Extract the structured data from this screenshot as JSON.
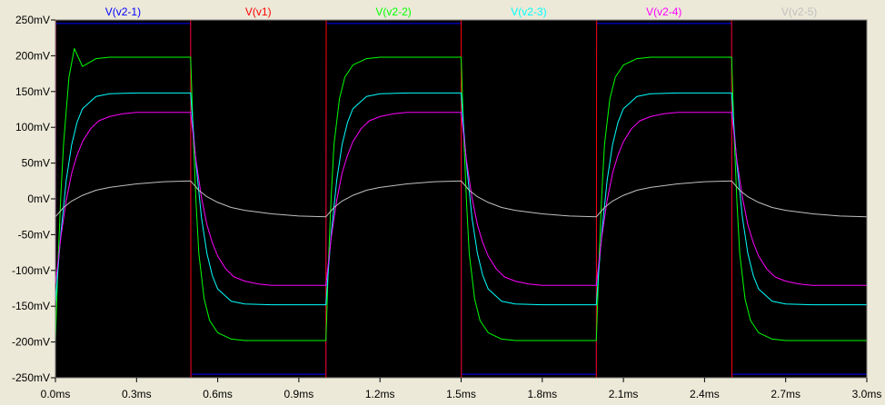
{
  "chart_data": {
    "type": "line",
    "title": "",
    "xlabel": "",
    "ylabel": "",
    "xlim": [
      0,
      3.0
    ],
    "ylim": [
      -250,
      250
    ],
    "x_unit": "ms",
    "y_unit": "mV",
    "grid": false,
    "legend_position": "top",
    "background": "#000000",
    "x_ticks": [
      "0.0ms",
      "0.3ms",
      "0.6ms",
      "0.9ms",
      "1.2ms",
      "1.5ms",
      "1.8ms",
      "2.1ms",
      "2.4ms",
      "2.7ms",
      "3.0ms"
    ],
    "y_ticks": [
      "250mV",
      "200mV",
      "150mV",
      "100mV",
      "50mV",
      "0mV",
      "-50mV",
      "-100mV",
      "-150mV",
      "-200mV",
      "-250mV"
    ],
    "series": [
      {
        "name": "V(v2-1)",
        "color": "#0000ff",
        "x": [
          0,
          0.001,
          0.499,
          0.5,
          0.501,
          0.999,
          1.0,
          1.001,
          1.499,
          1.5,
          1.501,
          1.999,
          2.0,
          2.001,
          2.499,
          2.5,
          2.501,
          2.999,
          3.0
        ],
        "y": [
          -245,
          245,
          245,
          245,
          -245,
          -245,
          -245,
          245,
          245,
          245,
          -245,
          -245,
          -245,
          245,
          245,
          245,
          -245,
          -245,
          -245
        ]
      },
      {
        "name": "V(v1)",
        "color": "#ff0000",
        "x": [
          0,
          0.001,
          0.499,
          0.5,
          0.501,
          0.999,
          1.0,
          1.001,
          1.499,
          1.5,
          1.501,
          1.999,
          2.0,
          2.001,
          2.499,
          2.5,
          2.501,
          2.999,
          3.0
        ],
        "y": [
          -250,
          250,
          250,
          250,
          -250,
          -250,
          -250,
          250,
          250,
          250,
          -250,
          -250,
          -250,
          250,
          250,
          250,
          -250,
          -250,
          -250
        ]
      },
      {
        "name": "V(v2-2)",
        "color": "#00ff00",
        "x": [
          0,
          0.01,
          0.02,
          0.03,
          0.05,
          0.07,
          0.1,
          0.15,
          0.2,
          0.3,
          0.4,
          0.5,
          0.51,
          0.52,
          0.53,
          0.55,
          0.57,
          0.6,
          0.65,
          0.7,
          0.8,
          0.9,
          1.0,
          1.01,
          1.02,
          1.03,
          1.05,
          1.07,
          1.1,
          1.15,
          1.2,
          1.3,
          1.4,
          1.5,
          1.51,
          1.52,
          1.53,
          1.55,
          1.57,
          1.6,
          1.65,
          1.7,
          1.8,
          1.9,
          2.0,
          2.01,
          2.02,
          2.03,
          2.05,
          2.07,
          2.1,
          2.15,
          2.2,
          2.3,
          2.4,
          2.5,
          2.51,
          2.52,
          2.53,
          2.55,
          2.57,
          2.6,
          2.65,
          2.7,
          2.8,
          2.9,
          3.0
        ],
        "y": [
          -198,
          -84,
          6,
          76,
          170,
          210,
          185,
          196,
          198,
          198,
          198,
          198,
          84,
          -6,
          -76,
          -140,
          -170,
          -187,
          -196,
          -198,
          -198,
          -198,
          -198,
          -84,
          6,
          76,
          140,
          170,
          187,
          196,
          198,
          198,
          198,
          198,
          84,
          -6,
          -76,
          -140,
          -170,
          -187,
          -196,
          -198,
          -198,
          -198,
          -198,
          -84,
          6,
          76,
          140,
          170,
          187,
          196,
          198,
          198,
          198,
          198,
          84,
          -6,
          -76,
          -140,
          -170,
          -187,
          -196,
          -198,
          -198,
          -198,
          -198
        ]
      },
      {
        "name": "V(v2-3)",
        "color": "#00ffff",
        "x": [
          0,
          0.01,
          0.02,
          0.04,
          0.06,
          0.08,
          0.1,
          0.15,
          0.2,
          0.3,
          0.4,
          0.5,
          0.51,
          0.52,
          0.54,
          0.56,
          0.58,
          0.6,
          0.65,
          0.7,
          0.8,
          0.9,
          1.0,
          1.01,
          1.02,
          1.04,
          1.06,
          1.08,
          1.1,
          1.15,
          1.2,
          1.3,
          1.4,
          1.5,
          1.51,
          1.52,
          1.54,
          1.56,
          1.58,
          1.6,
          1.65,
          1.7,
          1.8,
          1.9,
          2.0,
          2.01,
          2.02,
          2.04,
          2.06,
          2.08,
          2.1,
          2.15,
          2.2,
          2.3,
          2.4,
          2.5,
          2.51,
          2.52,
          2.54,
          2.56,
          2.58,
          2.6,
          2.65,
          2.7,
          2.8,
          2.9,
          3.0
        ],
        "y": [
          -148,
          -95,
          -48,
          26,
          76,
          107,
          126,
          143,
          147,
          148,
          148,
          148,
          95,
          48,
          -26,
          -76,
          -107,
          -126,
          -143,
          -147,
          -148,
          -148,
          -148,
          -95,
          -48,
          26,
          76,
          107,
          126,
          143,
          147,
          148,
          148,
          148,
          95,
          48,
          -26,
          -76,
          -107,
          -126,
          -143,
          -147,
          -148,
          -148,
          -148,
          -95,
          -48,
          26,
          76,
          107,
          126,
          143,
          147,
          148,
          148,
          148,
          95,
          48,
          -26,
          -76,
          -107,
          -126,
          -143,
          -147,
          -148,
          -148,
          -148
        ]
      },
      {
        "name": "V(v2-4)",
        "color": "#ff00ff",
        "x": [
          0,
          0.02,
          0.04,
          0.06,
          0.08,
          0.1,
          0.13,
          0.16,
          0.2,
          0.25,
          0.3,
          0.4,
          0.5,
          0.52,
          0.54,
          0.56,
          0.58,
          0.6,
          0.63,
          0.66,
          0.7,
          0.75,
          0.8,
          0.9,
          1.0,
          1.02,
          1.04,
          1.06,
          1.08,
          1.1,
          1.13,
          1.16,
          1.2,
          1.25,
          1.3,
          1.4,
          1.5,
          1.52,
          1.54,
          1.56,
          1.58,
          1.6,
          1.63,
          1.66,
          1.7,
          1.75,
          1.8,
          1.9,
          2.0,
          2.02,
          2.04,
          2.06,
          2.08,
          2.1,
          2.13,
          2.16,
          2.2,
          2.25,
          2.3,
          2.4,
          2.5,
          2.52,
          2.54,
          2.56,
          2.58,
          2.6,
          2.63,
          2.66,
          2.7,
          2.75,
          2.8,
          2.9,
          3.0
        ],
        "y": [
          -121,
          -53,
          -2,
          36,
          61,
          80,
          98,
          109,
          115,
          119,
          121,
          121,
          121,
          53,
          2,
          -36,
          -61,
          -80,
          -98,
          -109,
          -115,
          -119,
          -121,
          -121,
          -121,
          -53,
          -2,
          36,
          61,
          80,
          98,
          109,
          115,
          119,
          121,
          121,
          121,
          53,
          2,
          -36,
          -61,
          -80,
          -98,
          -109,
          -115,
          -119,
          -121,
          -121,
          -121,
          -53,
          -2,
          36,
          61,
          80,
          98,
          109,
          115,
          119,
          121,
          121,
          121,
          53,
          2,
          -36,
          -61,
          -80,
          -98,
          -109,
          -115,
          -119,
          -121,
          -121,
          -121
        ]
      },
      {
        "name": "V(v2-5)",
        "color": "#c0c0c0",
        "x": [
          0,
          0.03,
          0.06,
          0.1,
          0.15,
          0.2,
          0.3,
          0.4,
          0.5,
          0.53,
          0.56,
          0.6,
          0.65,
          0.7,
          0.8,
          0.9,
          1.0,
          1.03,
          1.06,
          1.1,
          1.15,
          1.2,
          1.3,
          1.4,
          1.5,
          1.53,
          1.56,
          1.6,
          1.65,
          1.7,
          1.8,
          1.9,
          2.0,
          2.03,
          2.06,
          2.1,
          2.15,
          2.2,
          2.3,
          2.4,
          2.5,
          2.53,
          2.56,
          2.6,
          2.65,
          2.7,
          2.8,
          2.9,
          3.0
        ],
        "y": [
          -25,
          -12,
          -3,
          5,
          12,
          16,
          21,
          24,
          25,
          12,
          3,
          -5,
          -12,
          -16,
          -21,
          -24,
          -25,
          -12,
          -3,
          5,
          12,
          16,
          21,
          24,
          25,
          12,
          3,
          -5,
          -12,
          -16,
          -21,
          -24,
          -25,
          -12,
          -3,
          5,
          12,
          16,
          21,
          24,
          25,
          12,
          3,
          -5,
          -12,
          -16,
          -21,
          -24,
          -25
        ]
      }
    ]
  }
}
